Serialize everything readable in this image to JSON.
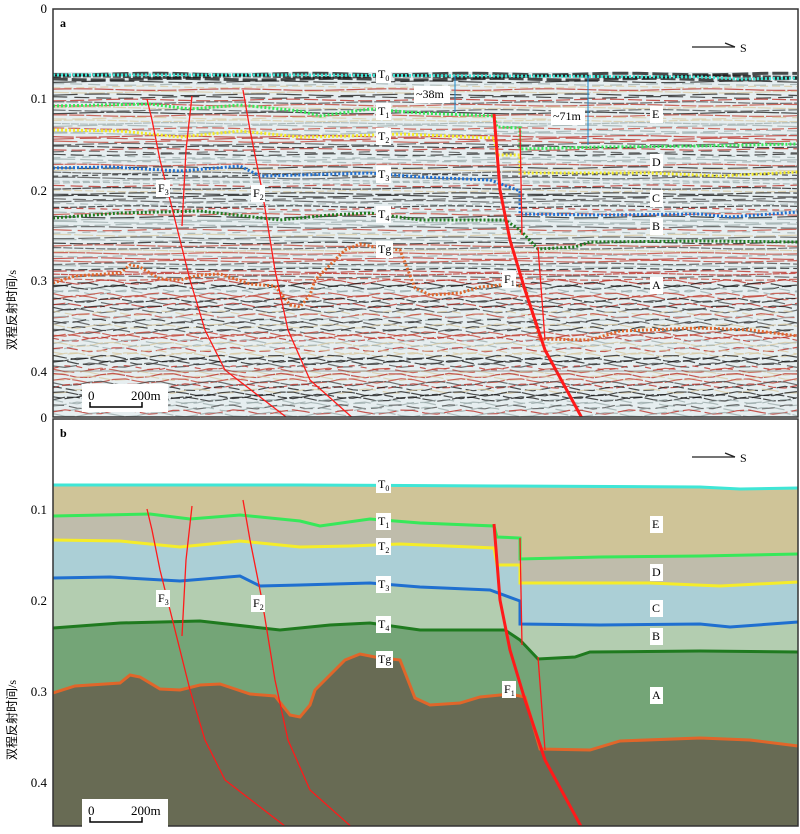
{
  "axis": {
    "ylabel": "双程反射时间/s",
    "ticks_a": [
      "0",
      "0.1",
      "0.2",
      "0.3",
      "0.4",
      "0"
    ],
    "ticks_b": [
      "0.1",
      "0.2",
      "0.3",
      "0.4"
    ]
  },
  "panels": {
    "a": {
      "label": "a"
    },
    "b": {
      "label": "b"
    }
  },
  "direction": "S",
  "scale_bar": {
    "start": "0",
    "end": "200m"
  },
  "measurements": [
    "~38m",
    "~71m"
  ],
  "horizons": [
    {
      "base": "T",
      "sub": "0"
    },
    {
      "base": "T",
      "sub": "1"
    },
    {
      "base": "T",
      "sub": "2"
    },
    {
      "base": "T",
      "sub": "3"
    },
    {
      "base": "T",
      "sub": "4"
    },
    {
      "base": "Tg",
      "sub": ""
    }
  ],
  "units": [
    "E",
    "D",
    "C",
    "B",
    "A"
  ],
  "faults": [
    {
      "base": "F",
      "sub": "3"
    },
    {
      "base": "F",
      "sub": "2"
    },
    {
      "base": "F",
      "sub": "1"
    }
  ],
  "colors": {
    "T0": "#3fe6d6",
    "T1": "#37e85a",
    "T2": "#f5ec2a",
    "T3": "#1f6fd0",
    "T4": "#1f7a1f",
    "Tg": "#e0662a",
    "E": "#cfc498",
    "D": "#bfbcab",
    "C": "#abcfd6",
    "B": "#b3cdb0",
    "A": "#74a577",
    "basement": "#686b54",
    "fault": "#ff1a1a"
  }
}
